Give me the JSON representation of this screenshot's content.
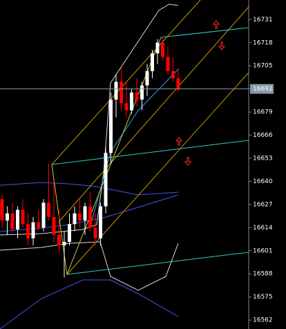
{
  "chart_data": {
    "type": "candlestick",
    "open": [
      16630,
      16618,
      16622,
      16613,
      16624,
      16616,
      16608,
      16617,
      16614,
      16628,
      16620,
      16610,
      16604,
      16606,
      16616,
      16622,
      16618,
      16626,
      16614,
      16608,
      16626,
      16656,
      16686,
      16696,
      16684,
      16680,
      16690,
      16686,
      16694,
      16702,
      16712,
      16718,
      16710,
      16702,
      16698
    ],
    "high": [
      16633,
      16626,
      16628,
      16626,
      16630,
      16622,
      16620,
      16624,
      16630,
      16650,
      16640,
      16624,
      16612,
      16622,
      16626,
      16630,
      16628,
      16634,
      16622,
      16628,
      16660,
      16690,
      16700,
      16704,
      16696,
      16692,
      16698,
      16696,
      16706,
      16714,
      16720,
      16721,
      16716,
      16710,
      16704
    ],
    "low": [
      16614,
      16610,
      16611,
      16608,
      16614,
      16604,
      16604,
      16612,
      16612,
      16618,
      16606,
      16600,
      16586,
      16604,
      16612,
      16614,
      16610,
      16612,
      16604,
      16604,
      16622,
      16650,
      16676,
      16680,
      16676,
      16678,
      16682,
      16680,
      16688,
      16698,
      16706,
      16708,
      16700,
      16696,
      16690
    ],
    "close": [
      16618,
      16622,
      16613,
      16624,
      16616,
      16608,
      16617,
      16614,
      16628,
      16620,
      16610,
      16604,
      16606,
      16616,
      16622,
      16618,
      16626,
      16614,
      16608,
      16626,
      16656,
      16686,
      16696,
      16684,
      16680,
      16690,
      16686,
      16694,
      16702,
      16712,
      16718,
      16710,
      16702,
      16698,
      16692
    ],
    "up_color": "#ffffff",
    "down_color": "#ff0000",
    "current_price": 16692,
    "ylim": [
      16557,
      16742
    ],
    "yticks": [
      16562,
      16575,
      16588,
      16601,
      16614,
      16627,
      16640,
      16653,
      16666,
      16679,
      16692,
      16705,
      16718,
      16731
    ]
  }
}
